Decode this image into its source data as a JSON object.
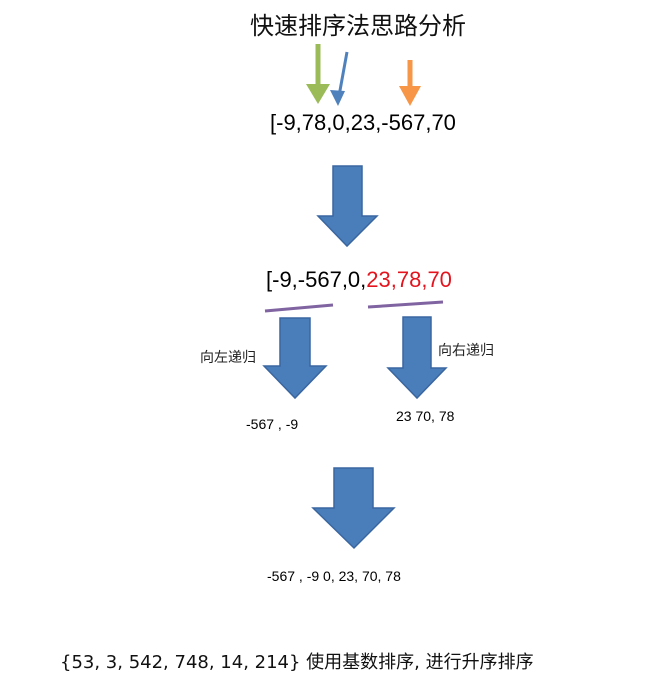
{
  "title": "快速排序法思路分析",
  "initial_array": "[-9,78,0,23,-567,70",
  "partitioned_array": {
    "black_part": "[-9,-567,0,",
    "red_part": "23,78,70"
  },
  "left_label": "向左递归",
  "right_label": "向右递归",
  "left_result": "-567  , -9",
  "right_result": "23 70, 78",
  "final_result": "-567 , -9  0, 23, 70, 78",
  "footer": "{53, 3, 542, 748, 14, 214} 使用基数排序, 进行升序排序",
  "colors": {
    "arrow_fill": "#4a7ebb",
    "arrow_stroke": "#3a66a0",
    "green_pointer": "#9bbb59",
    "blue_pointer": "#4f81bd",
    "orange_pointer": "#f79646",
    "purple_underline": "#8064a2",
    "red_text": "#e3141e"
  }
}
